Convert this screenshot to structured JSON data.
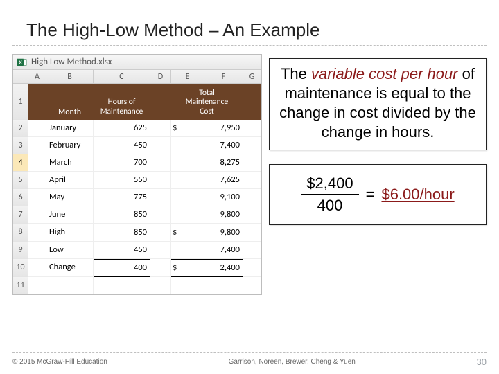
{
  "colors": {
    "header_bg": "#6b4226",
    "header_text": "#ffffff",
    "dash": "#bfbfbf",
    "accent_red": "#8b1a1a",
    "selected_row_bg": "#fbe8b8"
  },
  "slide": {
    "title": "The High-Low Method – An Example",
    "page_number": "30",
    "copyright": "© 2015 McGraw-Hill Education",
    "authors": "Garrison, Noreen, Brewer, Cheng & Yuen"
  },
  "excel": {
    "filename": "High Low Method.xlsx",
    "columns": [
      "A",
      "B",
      "C",
      "D",
      "E",
      "F",
      "G"
    ],
    "selected_row": 4,
    "header": {
      "A": "",
      "B": "Month",
      "C": "Hours of\nMaintenance",
      "D": "",
      "E": "Total\nMaintenance\nCost",
      "F": ""
    },
    "rows": [
      {
        "n": 2,
        "month": "January",
        "hours": "625",
        "d": "$",
        "cost": "7,950"
      },
      {
        "n": 3,
        "month": "February",
        "hours": "450",
        "d": "",
        "cost": "7,400"
      },
      {
        "n": 4,
        "month": "March",
        "hours": "700",
        "d": "",
        "cost": "8,275"
      },
      {
        "n": 5,
        "month": "April",
        "hours": "550",
        "d": "",
        "cost": "7,625"
      },
      {
        "n": 6,
        "month": "May",
        "hours": "775",
        "d": "",
        "cost": "9,100"
      },
      {
        "n": 7,
        "month": "June",
        "hours": "850",
        "d": "",
        "cost": "9,800"
      },
      {
        "n": 8,
        "month": "High",
        "hours": "850",
        "d": "$",
        "cost": "9,800",
        "top": true
      },
      {
        "n": 9,
        "month": "Low",
        "hours": "450",
        "d": "",
        "cost": "7,400"
      },
      {
        "n": 10,
        "month": "Change",
        "hours": "400",
        "d": "$",
        "cost": "2,400",
        "top": true,
        "bot": true
      }
    ],
    "blank_rows": [
      11
    ]
  },
  "textbox": {
    "pre": "The ",
    "vc": "variable cost per hour",
    "post": " of maintenance is equal to the change in cost divided by the change in hours."
  },
  "equation": {
    "numerator": "$2,400",
    "denominator": "400",
    "equals": "=",
    "answer": "$6.00/hour"
  }
}
